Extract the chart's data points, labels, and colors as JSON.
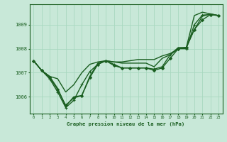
{
  "title": "Graphe pression niveau de la mer (hPa)",
  "background_color": "#c8e8d8",
  "grid_color": "#a8d8c0",
  "line_color": "#1a5e20",
  "xlim": [
    -0.5,
    23.5
  ],
  "ylim": [
    1005.3,
    1009.85
  ],
  "yticks": [
    1006,
    1007,
    1008,
    1009
  ],
  "xticks": [
    0,
    1,
    2,
    3,
    4,
    5,
    6,
    7,
    8,
    9,
    10,
    11,
    12,
    13,
    14,
    15,
    16,
    17,
    18,
    19,
    20,
    21,
    22,
    23
  ],
  "series": [
    {
      "x": [
        0,
        1,
        2,
        3,
        4,
        5,
        6,
        7,
        8,
        9,
        10,
        11,
        12,
        13,
        14,
        15,
        16,
        17,
        18,
        19,
        20,
        21,
        22,
        23
      ],
      "y": [
        1007.5,
        1007.1,
        1006.85,
        1006.75,
        1006.2,
        1006.5,
        1007.0,
        1007.35,
        1007.45,
        1007.5,
        1007.45,
        1007.45,
        1007.5,
        1007.55,
        1007.55,
        1007.55,
        1007.7,
        1007.8,
        1008.0,
        1008.05,
        1008.8,
        1009.35,
        1009.45,
        1009.38
      ],
      "style": "-",
      "marker": null,
      "markersize": 0,
      "linewidth": 1.0
    },
    {
      "x": [
        0,
        1,
        2,
        3,
        4,
        5,
        6,
        7,
        8,
        9,
        10,
        11,
        12,
        13,
        14,
        15,
        16,
        17,
        18,
        19,
        20,
        21,
        22,
        23
      ],
      "y": [
        1007.5,
        1007.1,
        1006.8,
        1006.3,
        1005.65,
        1005.95,
        1006.05,
        1006.8,
        1007.35,
        1007.5,
        1007.3,
        1007.2,
        1007.2,
        1007.2,
        1007.2,
        1007.1,
        1007.2,
        1007.6,
        1008.0,
        1008.05,
        1008.8,
        1009.2,
        1009.42,
        1009.38
      ],
      "style": "-",
      "marker": "D",
      "markersize": 2.0,
      "linewidth": 1.0
    },
    {
      "x": [
        0,
        1,
        2,
        3,
        4,
        5,
        6,
        7,
        8,
        9,
        10,
        11,
        12,
        13,
        14,
        15,
        16,
        17,
        18,
        19,
        20,
        21,
        22,
        23
      ],
      "y": [
        1007.5,
        1007.1,
        1006.75,
        1006.2,
        1005.55,
        1005.85,
        1006.5,
        1007.05,
        1007.35,
        1007.5,
        1007.35,
        1007.2,
        1007.2,
        1007.2,
        1007.2,
        1007.15,
        1007.25,
        1007.75,
        1008.0,
        1008.0,
        1009.0,
        1009.4,
        1009.42,
        1009.38
      ],
      "style": "-",
      "marker": "+",
      "markersize": 3.5,
      "linewidth": 1.0
    },
    {
      "x": [
        0,
        1,
        2,
        3,
        4,
        5,
        6,
        7,
        8,
        9,
        10,
        11,
        12,
        13,
        14,
        15,
        16,
        17,
        18,
        19,
        20,
        21,
        22,
        23
      ],
      "y": [
        1007.5,
        1007.1,
        1006.85,
        1006.35,
        1005.6,
        1006.0,
        1006.05,
        1006.85,
        1007.4,
        1007.5,
        1007.45,
        1007.4,
        1007.4,
        1007.4,
        1007.4,
        1007.25,
        1007.6,
        1007.75,
        1008.05,
        1008.05,
        1009.38,
        1009.52,
        1009.45,
        1009.38
      ],
      "style": "-",
      "marker": null,
      "markersize": 0,
      "linewidth": 1.0
    }
  ]
}
